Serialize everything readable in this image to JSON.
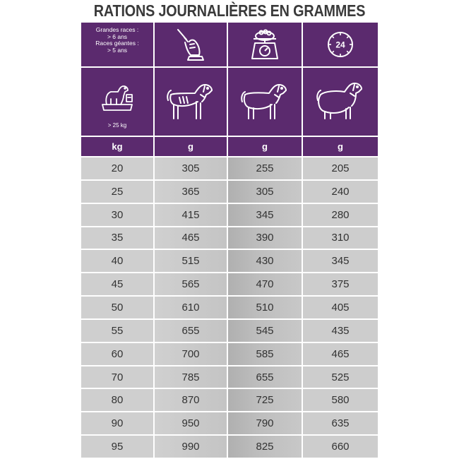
{
  "title": "RATIONS JOURNALIÈRES EN GRAMMES",
  "header": {
    "breed_lines": [
      "Grandes races :",
      "> 6 ans",
      "Races géantes :",
      "> 5 ans"
    ],
    "clock_label": "24",
    "weight_label": "> 25 kg",
    "icons": [
      "leash-hand-icon",
      "food-scale-icon",
      "clock-24h-icon",
      "dog-on-scale-icon",
      "thin-dog-icon",
      "normal-dog-icon",
      "fat-dog-icon"
    ]
  },
  "units": [
    "kg",
    "g",
    "g",
    "g"
  ],
  "rows": [
    [
      "20",
      "305",
      "255",
      "205"
    ],
    [
      "25",
      "365",
      "305",
      "240"
    ],
    [
      "30",
      "415",
      "345",
      "280"
    ],
    [
      "35",
      "465",
      "390",
      "310"
    ],
    [
      "40",
      "515",
      "430",
      "345"
    ],
    [
      "45",
      "565",
      "470",
      "375"
    ],
    [
      "50",
      "610",
      "510",
      "405"
    ],
    [
      "55",
      "655",
      "545",
      "435"
    ],
    [
      "60",
      "700",
      "585",
      "465"
    ],
    [
      "70",
      "785",
      "655",
      "525"
    ],
    [
      "80",
      "870",
      "725",
      "580"
    ],
    [
      "90",
      "950",
      "790",
      "635"
    ],
    [
      "95",
      "990",
      "825",
      "660"
    ]
  ],
  "colors": {
    "header_bg": "#5b2a6e",
    "cell_bg": "#cdcdcd",
    "text": "#333333"
  }
}
